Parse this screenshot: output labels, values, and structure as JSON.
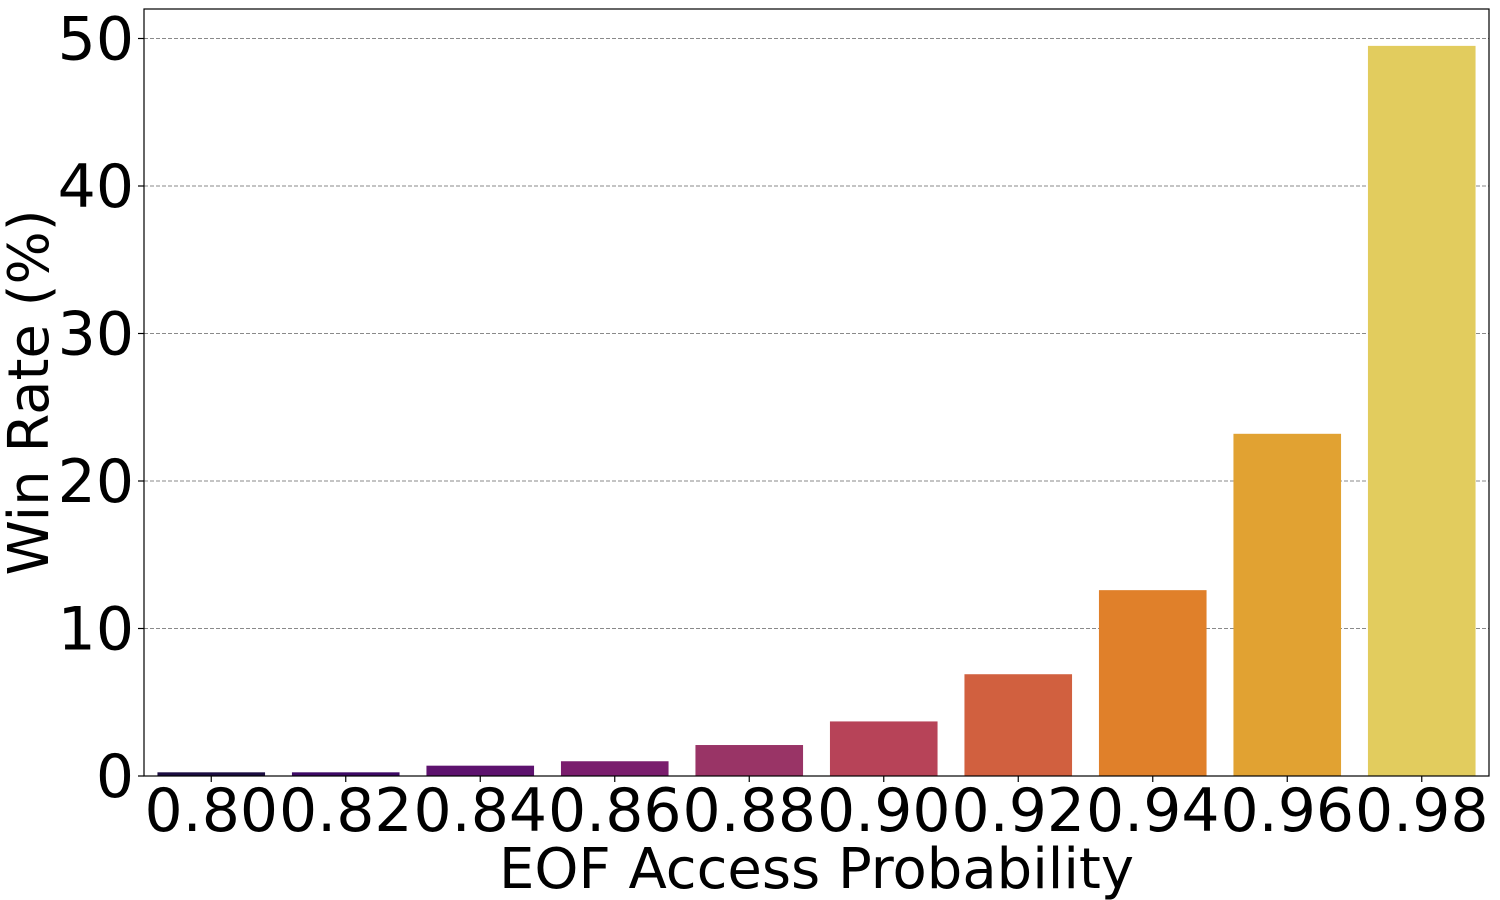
{
  "chart_data": {
    "type": "bar",
    "categories": [
      "0.80",
      "0.82",
      "0.84",
      "0.86",
      "0.88",
      "0.90",
      "0.92",
      "0.94",
      "0.96",
      "0.98"
    ],
    "values": [
      0.25,
      0.25,
      0.7,
      1.0,
      2.1,
      3.7,
      6.9,
      12.6,
      23.2,
      49.5
    ],
    "colors": [
      "#1b0c41",
      "#3d0965",
      "#5d126e",
      "#7a1d6d",
      "#993466",
      "#b74358",
      "#d1603f",
      "#e0802a",
      "#e1a232",
      "#e2cc5e"
    ],
    "title": "",
    "xlabel": "EOF Access Probability",
    "ylabel": "Win Rate (%)",
    "ylim": [
      0,
      52
    ],
    "yticks": [
      0,
      10,
      20,
      30,
      40,
      50
    ],
    "grid": "y-dashed",
    "legend": "none"
  }
}
